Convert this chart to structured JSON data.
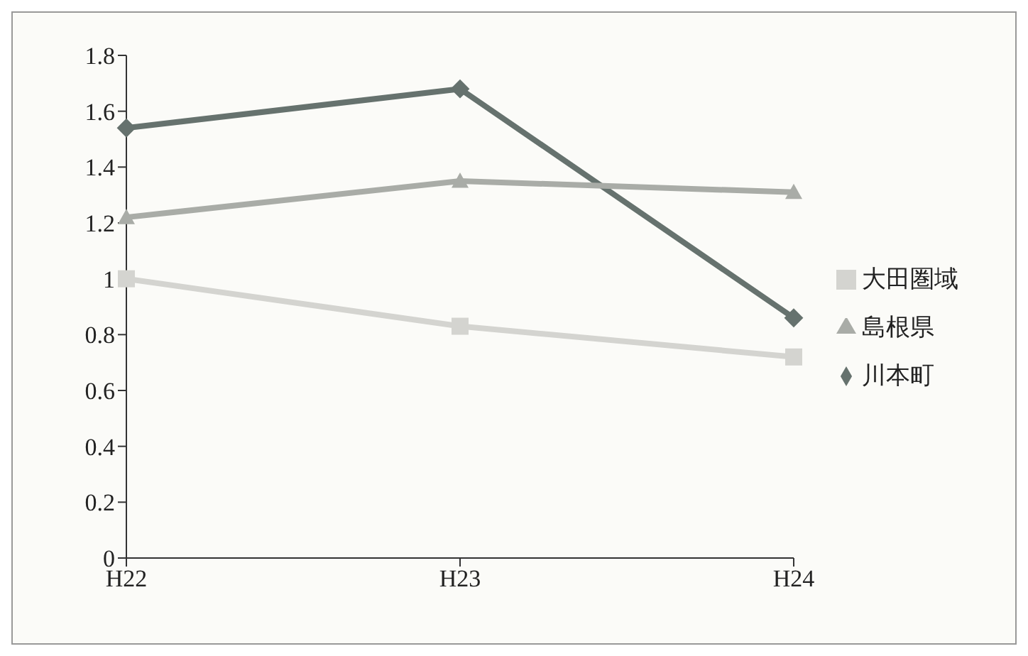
{
  "chart_data": {
    "type": "line",
    "categories": [
      "H22",
      "H23",
      "H24"
    ],
    "series": [
      {
        "name": "川本町",
        "color": "#66726e",
        "marker": "diamond",
        "values": [
          1.54,
          1.68,
          0.86
        ]
      },
      {
        "name": "大田圏域",
        "color": "#d4d4d0",
        "marker": "square",
        "values": [
          1.0,
          0.83,
          0.72
        ]
      },
      {
        "name": "島根県",
        "color": "#a9aca7",
        "marker": "triangle",
        "values": [
          1.22,
          1.35,
          1.31
        ]
      }
    ],
    "ylim": [
      0,
      1.8
    ],
    "yticks": [
      0,
      0.2,
      0.4,
      0.6,
      0.8,
      1,
      1.2,
      1.4,
      1.6,
      1.8
    ],
    "grid": false,
    "legend": "right"
  }
}
